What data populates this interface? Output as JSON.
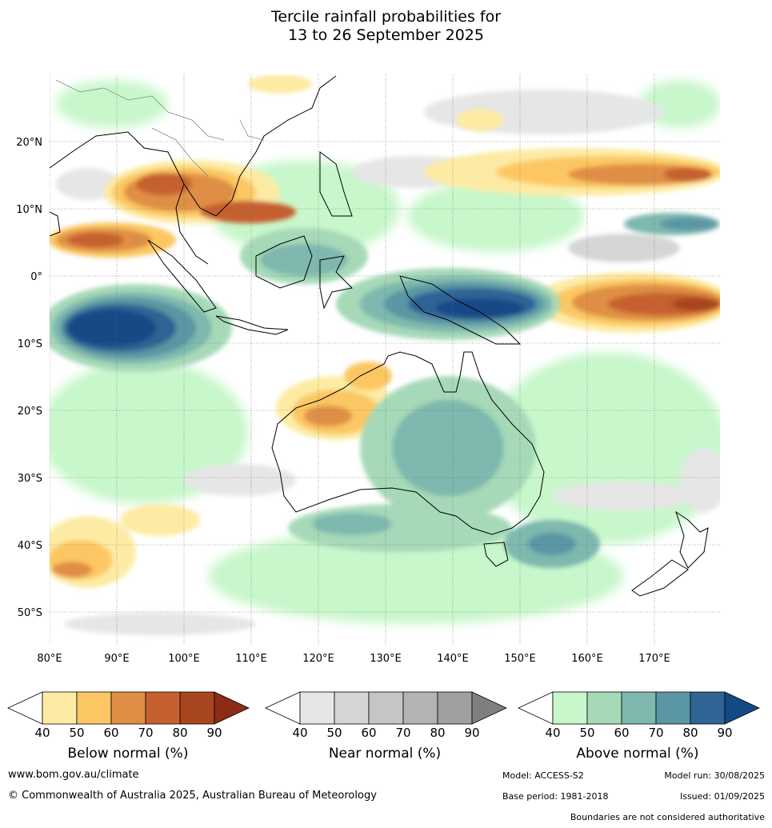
{
  "title": {
    "line1": "Tercile rainfall probabilities for",
    "line2": "13 to 26 September 2025"
  },
  "map": {
    "lon_labels": [
      "80°E",
      "90°E",
      "100°E",
      "110°E",
      "120°E",
      "130°E",
      "140°E",
      "150°E",
      "160°E",
      "170°E"
    ],
    "lat_labels": [
      "20°N",
      "10°N",
      "0°",
      "10°S",
      "20°S",
      "30°S",
      "40°S",
      "50°S"
    ],
    "gridlines": true,
    "land_outline_color": "#000000",
    "blank_color": "#ffffff"
  },
  "legends": [
    {
      "title": "Below normal (%)",
      "ticks": [
        "40",
        "50",
        "60",
        "70",
        "80",
        "90"
      ],
      "colors": [
        "#ffffff",
        "#fdeba4",
        "#fcc762",
        "#df8f45",
        "#c6612f",
        "#a7451f",
        "#8c2c14"
      ]
    },
    {
      "title": "Near normal (%)",
      "ticks": [
        "40",
        "50",
        "60",
        "70",
        "80",
        "90"
      ],
      "colors": [
        "#ffffff",
        "#e6e6e6",
        "#d5d5d5",
        "#c5c5c5",
        "#b3b3b3",
        "#a0a0a0",
        "#7f7f7f"
      ]
    },
    {
      "title": "Above normal (%)",
      "ticks": [
        "40",
        "50",
        "60",
        "70",
        "80",
        "90"
      ],
      "colors": [
        "#ffffff",
        "#c8f7cb",
        "#a6d9b8",
        "#7eb8ae",
        "#5a96a3",
        "#2f6494",
        "#124a86"
      ]
    }
  ],
  "footer": {
    "website": "www.bom.gov.au/climate",
    "copyright": "© Commonwealth of Australia 2025, Australian Bureau of Meteorology",
    "model": "Model: ACCESS-S2",
    "model_run": "Model run: 30/08/2025",
    "base_period": "Base period: 1981-2018",
    "issued": "Issued: 01/09/2025",
    "disclaimer": "Boundaries are not considered authoritative"
  }
}
